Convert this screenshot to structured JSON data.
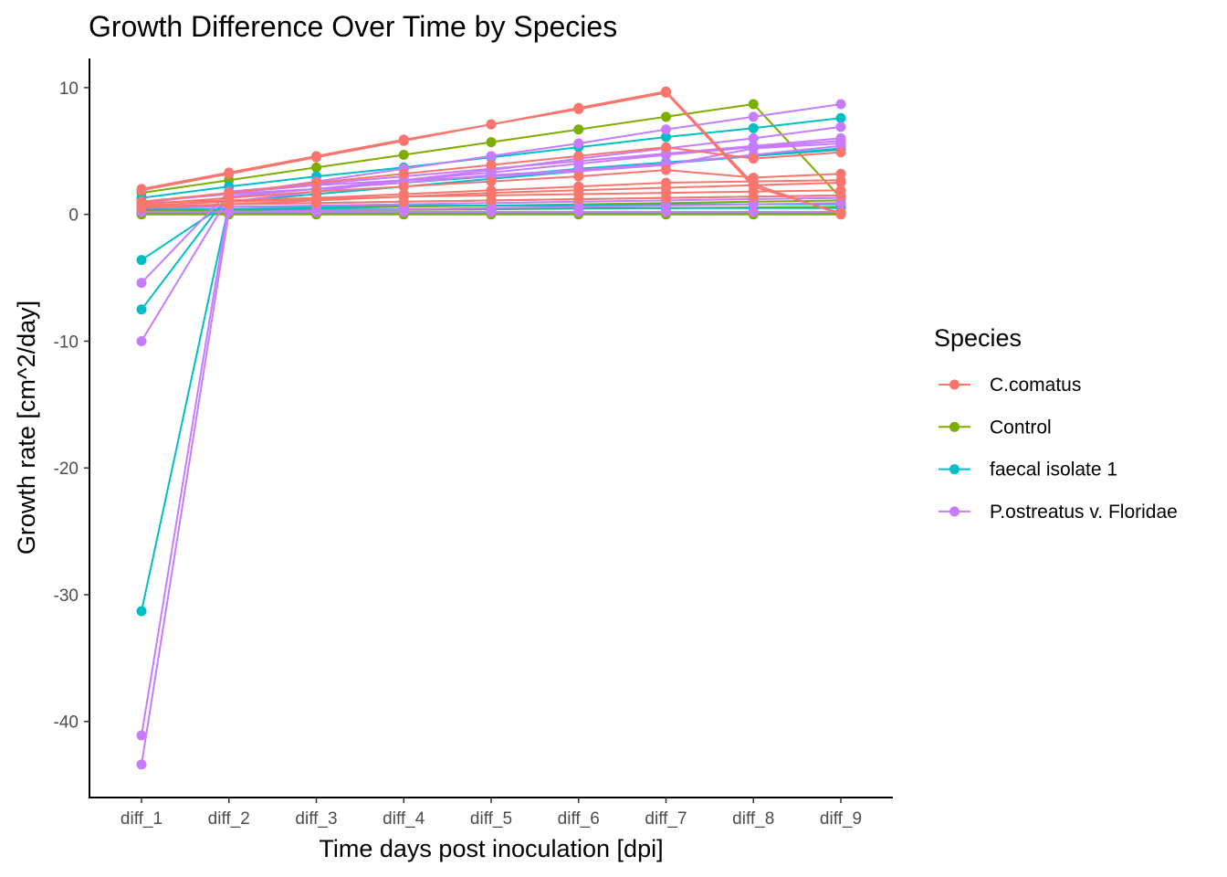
{
  "chart_data": {
    "type": "line",
    "title": "Growth Difference Over Time by Species",
    "xlabel": "Time days post inoculation [dpi]",
    "ylabel": "Growth rate [cm^2/day]",
    "categories": [
      "diff_1",
      "diff_2",
      "diff_3",
      "diff_4",
      "diff_5",
      "diff_6",
      "diff_7",
      "diff_8",
      "diff_9"
    ],
    "yticks": [
      10,
      0,
      -10,
      -20,
      -30,
      -40
    ],
    "ylim": [
      -46,
      12.3
    ],
    "grid": false,
    "legend": {
      "title": "Species",
      "position": "right",
      "entries": [
        {
          "label": "C.comatus",
          "color": "#F8766D"
        },
        {
          "label": "Control",
          "color": "#7CAE00"
        },
        {
          "label": "faecal isolate 1",
          "color": "#00BFC4"
        },
        {
          "label": "P.ostreatus v. Floridae",
          "color": "#C77CFF"
        }
      ]
    },
    "series": [
      {
        "group": "Control",
        "color": "#7CAE00",
        "values": [
          1.7,
          2.7,
          3.7,
          4.7,
          5.7,
          6.7,
          7.7,
          8.7,
          1.3
        ]
      },
      {
        "group": "Control",
        "color": "#7CAE00",
        "values": [
          0.3,
          0.4,
          0.5,
          0.6,
          0.7,
          0.8,
          0.9,
          1.0,
          1.1
        ]
      },
      {
        "group": "Control",
        "color": "#7CAE00",
        "values": [
          0.2,
          0.25,
          0.3,
          0.35,
          0.4,
          0.45,
          0.5,
          0.55,
          0.6
        ]
      },
      {
        "group": "Control",
        "color": "#7CAE00",
        "values": [
          0.0,
          0.0,
          0.0,
          0.0,
          0.0,
          0.0,
          0.0,
          0.0,
          0.0
        ]
      },
      {
        "group": "Control",
        "color": "#7CAE00",
        "values": [
          0.1,
          0.1,
          0.1,
          0.1,
          0.1,
          0.1,
          0.1,
          0.1,
          0.1
        ]
      },
      {
        "group": "faecal isolate 1",
        "color": "#00BFC4",
        "values": [
          1.3,
          2.2,
          3.0,
          3.7,
          4.5,
          5.3,
          6.1,
          6.8,
          7.6
        ]
      },
      {
        "group": "faecal isolate 1",
        "color": "#00BFC4",
        "values": [
          -3.6,
          1.0,
          1.6,
          2.2,
          2.8,
          3.4,
          4.0,
          4.6,
          5.1
        ]
      },
      {
        "group": "faecal isolate 1",
        "color": "#00BFC4",
        "values": [
          -7.5,
          1.6,
          2.0,
          2.5,
          3.0,
          3.6,
          4.1,
          4.6,
          5.2
        ]
      },
      {
        "group": "faecal isolate 1",
        "color": "#00BFC4",
        "values": [
          -31.3,
          0.8,
          0.9,
          1.0,
          1.1,
          1.2,
          1.3,
          1.4,
          1.5
        ]
      },
      {
        "group": "faecal isolate 1",
        "color": "#00BFC4",
        "values": [
          0.6,
          0.6,
          0.6,
          0.7,
          0.7,
          0.7,
          0.8,
          0.8,
          0.8
        ]
      },
      {
        "group": "faecal isolate 1",
        "color": "#00BFC4",
        "values": [
          0.4,
          0.4,
          0.4,
          0.4,
          0.5,
          0.5,
          0.5,
          0.5,
          0.5
        ]
      },
      {
        "group": "P.ostreatus v. Floridae",
        "color": "#C77CFF",
        "values": [
          1.0,
          1.6,
          2.6,
          3.6,
          4.6,
          5.6,
          6.7,
          7.7,
          8.7
        ]
      },
      {
        "group": "P.ostreatus v. Floridae",
        "color": "#C77CFF",
        "values": [
          -5.4,
          1.8,
          2.4,
          3.0,
          3.6,
          4.2,
          4.8,
          5.4,
          6.0
        ]
      },
      {
        "group": "P.ostreatus v. Floridae",
        "color": "#C77CFF",
        "values": [
          -10.0,
          1.4,
          2.0,
          2.7,
          3.3,
          4.0,
          4.7,
          5.3,
          5.8
        ]
      },
      {
        "group": "P.ostreatus v. Floridae",
        "color": "#C77CFF",
        "values": [
          -41.1,
          1.0,
          1.8,
          2.7,
          3.5,
          4.4,
          5.2,
          6.0,
          6.9
        ]
      },
      {
        "group": "P.ostreatus v. Floridae",
        "color": "#C77CFF",
        "values": [
          -43.4,
          0.2,
          0.3,
          0.4,
          0.5,
          0.6,
          0.7,
          0.8,
          0.9
        ]
      },
      {
        "group": "P.ostreatus v. Floridae",
        "color": "#C77CFF",
        "values": [
          0.9,
          1.7,
          2.3,
          2.7,
          3.0,
          3.4,
          3.9,
          5.2,
          5.6
        ]
      },
      {
        "group": "P.ostreatus v. Floridae",
        "color": "#C77CFF",
        "values": [
          1.0,
          1.6,
          2.0,
          2.5,
          3.1,
          3.5,
          4.0,
          4.7,
          5.4
        ]
      },
      {
        "group": "P.ostreatus v. Floridae",
        "color": "#C77CFF",
        "values": [
          0.5,
          0.6,
          0.7,
          0.8,
          0.9,
          1.0,
          1.1,
          1.2,
          1.3
        ]
      },
      {
        "group": "P.ostreatus v. Floridae",
        "color": "#C77CFF",
        "values": [
          0.2,
          0.2,
          0.2,
          0.2,
          0.2,
          0.2,
          0.2,
          0.2,
          0.2
        ]
      },
      {
        "group": "C.comatus",
        "color": "#F8766D",
        "values": [
          2.0,
          3.3,
          4.6,
          5.9,
          7.1,
          8.4,
          9.7,
          2.4,
          0.0
        ]
      },
      {
        "group": "C.comatus",
        "color": "#F8766D",
        "values": [
          1.9,
          3.2,
          4.5,
          5.8,
          7.1,
          8.3,
          9.6,
          2.2,
          0.1
        ]
      },
      {
        "group": "C.comatus",
        "color": "#F8766D",
        "values": [
          1.0,
          1.7,
          2.5,
          3.2,
          3.9,
          4.6,
          5.3,
          4.4,
          4.9
        ]
      },
      {
        "group": "C.comatus",
        "color": "#F8766D",
        "values": [
          0.8,
          1.3,
          1.8,
          2.2,
          2.6,
          3.0,
          3.5,
          2.9,
          3.2
        ]
      },
      {
        "group": "C.comatus",
        "color": "#F8766D",
        "values": [
          0.9,
          1.1,
          1.3,
          1.6,
          1.9,
          2.2,
          2.5,
          2.6,
          2.7
        ]
      },
      {
        "group": "C.comatus",
        "color": "#F8766D",
        "values": [
          0.5,
          0.8,
          1.1,
          1.4,
          1.7,
          1.9,
          2.1,
          2.3,
          2.5
        ]
      },
      {
        "group": "C.comatus",
        "color": "#F8766D",
        "values": [
          0.7,
          1.0,
          1.2,
          1.4,
          1.5,
          1.6,
          1.7,
          1.8,
          1.9
        ]
      },
      {
        "group": "C.comatus",
        "color": "#F8766D",
        "values": [
          0.6,
          0.8,
          0.9,
          1.0,
          1.1,
          1.2,
          1.3,
          1.4,
          1.5
        ]
      }
    ]
  }
}
